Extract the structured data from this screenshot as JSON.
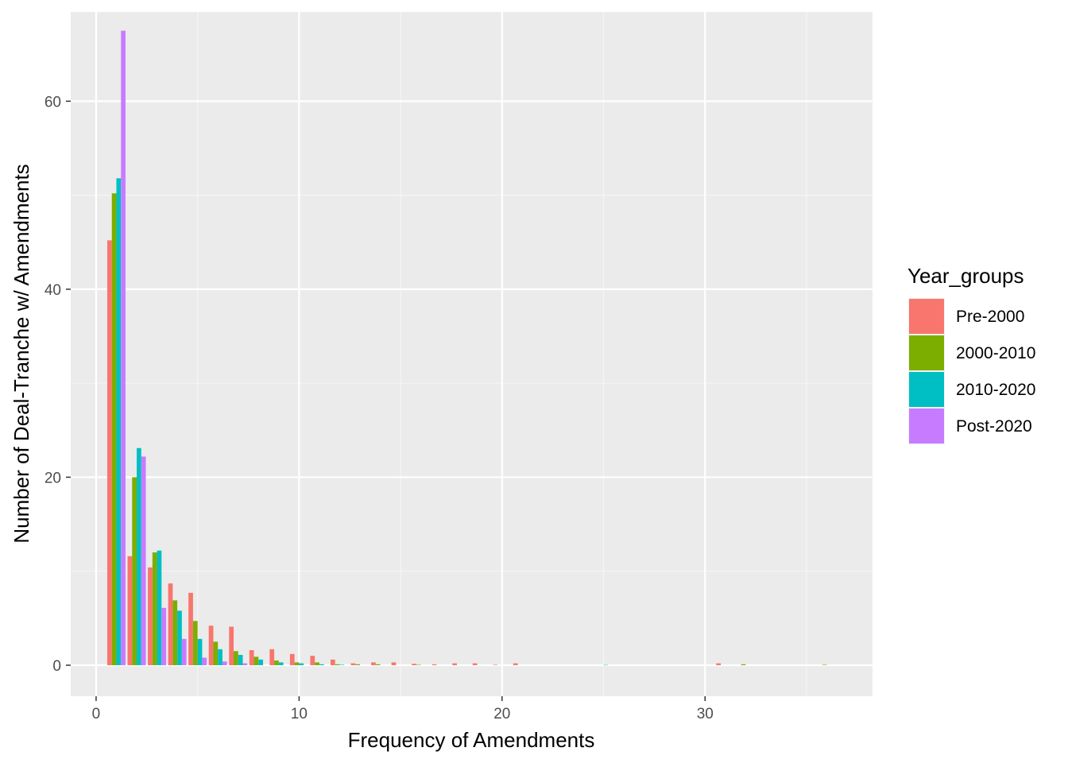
{
  "chart_data": {
    "type": "bar",
    "title": "",
    "xlabel": "Frequency of Amendments",
    "ylabel": "Number of Deal-Tranche w/ Amendments",
    "xlim": [
      -1.25,
      38.25
    ],
    "ylim": [
      -3.3,
      69.5
    ],
    "x_ticks": [
      0,
      10,
      20,
      30
    ],
    "y_ticks": [
      0,
      20,
      40,
      60
    ],
    "grid": true,
    "legend": {
      "title": "Year_groups",
      "position": "right"
    },
    "categories": [
      1,
      2,
      3,
      4,
      5,
      6,
      7,
      8,
      9,
      10,
      11,
      12,
      13,
      14,
      15,
      16,
      17,
      18,
      19,
      20,
      21,
      25,
      31,
      32,
      36
    ],
    "series": [
      {
        "name": "Pre-2000",
        "color": "#F8766D",
        "values": [
          45.2,
          11.6,
          10.4,
          8.7,
          7.7,
          4.2,
          4.1,
          1.6,
          1.7,
          1.2,
          1.0,
          0.6,
          0.2,
          0.3,
          0.3,
          0.15,
          0.1,
          0.2,
          0.2,
          0.05,
          0.2,
          0,
          0.2,
          0,
          0
        ]
      },
      {
        "name": "2000-2010",
        "color": "#7CAE00",
        "values": [
          50.2,
          20.0,
          12.0,
          6.9,
          4.7,
          2.5,
          1.5,
          0.9,
          0.5,
          0.3,
          0.3,
          0.1,
          0.1,
          0.1,
          0,
          0.05,
          0,
          0,
          0,
          0,
          0,
          0,
          0,
          0.1,
          0.05
        ]
      },
      {
        "name": "2010-2020",
        "color": "#00BFC4",
        "values": [
          51.8,
          23.1,
          12.2,
          5.8,
          2.8,
          1.7,
          1.1,
          0.6,
          0.3,
          0.2,
          0.1,
          0.05,
          0,
          0,
          0,
          0,
          0,
          0,
          0,
          0,
          0,
          0.03,
          0,
          0,
          0
        ]
      },
      {
        "name": "Post-2020",
        "color": "#C77CFF",
        "values": [
          67.5,
          22.2,
          6.1,
          2.8,
          0.8,
          0.4,
          0.2,
          0,
          0,
          0,
          0,
          0,
          0,
          0,
          0,
          0,
          0,
          0,
          0,
          0,
          0,
          0,
          0,
          0,
          0
        ]
      }
    ]
  }
}
